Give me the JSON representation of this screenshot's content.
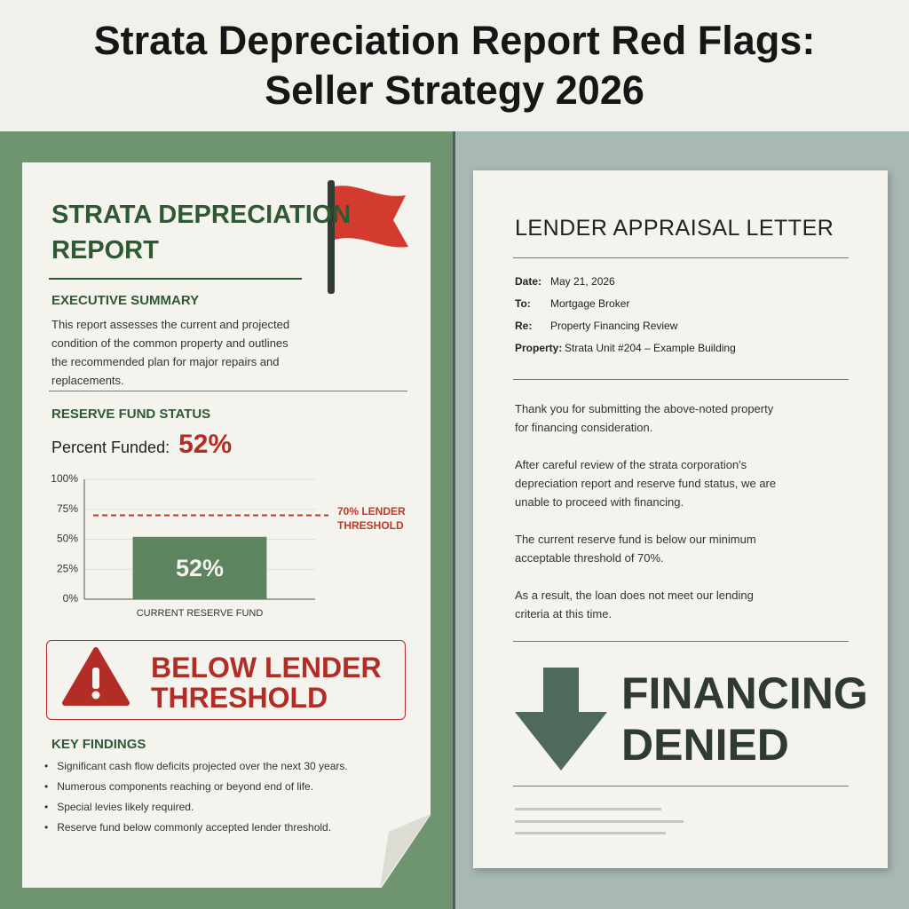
{
  "header": {
    "title_lines": [
      "Strata Depreciation Report Red Flags:",
      "Seller Strategy 2026"
    ]
  },
  "report": {
    "title_lines": [
      "STRATA DEPRECIATION",
      "REPORT"
    ],
    "executive_summary": {
      "heading": "EXECUTIVE SUMMARY",
      "text": "This report assesses the current and projected condition of the common property and outlines the recommended plan for major repairs and replacements."
    },
    "reserve_fund": {
      "heading": "RESERVE FUND STATUS",
      "percent_label": "Percent Funded:",
      "percent_value": "52%"
    },
    "alert_lines": [
      "BELOW LENDER",
      "THRESHOLD"
    ],
    "key_findings": {
      "heading": "KEY FINDINGS",
      "items": [
        "Significant cash flow deficits projected over the next 30 years.",
        "Numerous components reaching or beyond end of life.",
        "Special levies likely required.",
        "Reserve fund below commonly accepted lender threshold."
      ]
    }
  },
  "chart_data": {
    "type": "bar",
    "categories": [
      "CURRENT RESERVE FUND"
    ],
    "values": [
      52
    ],
    "value_labels": [
      "52%"
    ],
    "color": "#5b845f",
    "ylim": [
      0,
      100
    ],
    "yticks": [
      {
        "value": 0,
        "label": "0%"
      },
      {
        "value": 25,
        "label": "25%"
      },
      {
        "value": 50,
        "label": "50%"
      },
      {
        "value": 75,
        "label": "75%"
      },
      {
        "value": 100,
        "label": "100%"
      }
    ],
    "threshold": {
      "value": 70,
      "label": "70% LENDER THRESHOLD",
      "color": "#c0392b"
    }
  },
  "letter": {
    "title": "LENDER APPRAISAL LETTER",
    "fields": [
      {
        "label": "Date:",
        "value": "May 21, 2026"
      },
      {
        "label": "To:",
        "value": "Mortgage Broker"
      },
      {
        "label": "Re:",
        "value": "Property Financing Review"
      },
      {
        "label": "Property:",
        "value": "Strata Unit #204 – Example Building"
      }
    ],
    "paragraphs": [
      "Thank you for submitting the above-noted property for financing consideration.",
      "After careful review of the strata corporation's depreciation report and reserve fund status, we are unable to proceed with financing.",
      "The current reserve fund is below our minimum acceptable threshold of 70%.",
      "As a result, the loan does not meet our lending criteria at this time."
    ],
    "result_lines": [
      "FINANCING",
      "DENIED"
    ]
  }
}
